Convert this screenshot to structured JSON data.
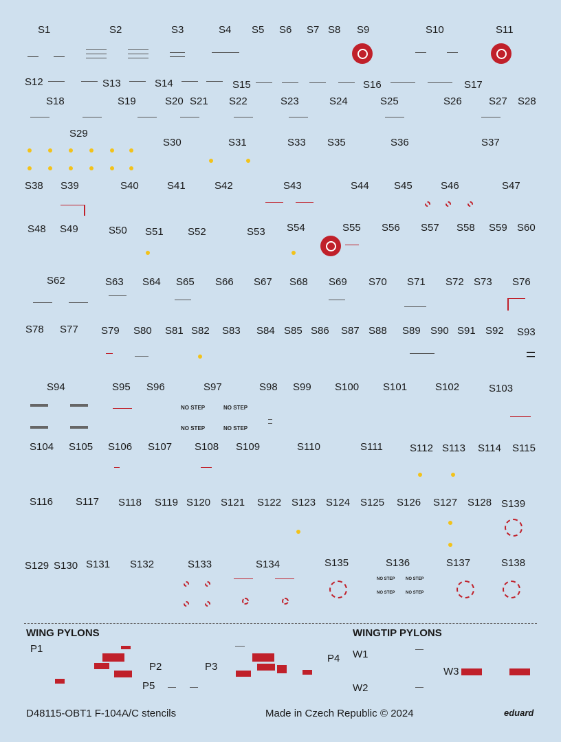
{
  "labels": [
    "S1",
    "S2",
    "S3",
    "S4",
    "S5",
    "S6",
    "S7",
    "S8",
    "S9",
    "S10",
    "S11",
    "S12",
    "S13",
    "S14",
    "S15",
    "S16",
    "S17",
    "S18",
    "S19",
    "S20",
    "S21",
    "S22",
    "S23",
    "S24",
    "S25",
    "S26",
    "S27",
    "S28",
    "S29",
    "S30",
    "S31",
    "S33",
    "S35",
    "S36",
    "S37",
    "S38",
    "S39",
    "S40",
    "S41",
    "S42",
    "S43",
    "S44",
    "S45",
    "S46",
    "S47",
    "S48",
    "S49",
    "S50",
    "S51",
    "S52",
    "S53",
    "S54",
    "S55",
    "S56",
    "S57",
    "S58",
    "S59",
    "S60",
    "S62",
    "S63",
    "S64",
    "S65",
    "S66",
    "S67",
    "S68",
    "S69",
    "S70",
    "S71",
    "S72",
    "S73",
    "S76",
    "S78",
    "S77",
    "S79",
    "S80",
    "S81",
    "S82",
    "S83",
    "S84",
    "S85",
    "S86",
    "S87",
    "S88",
    "S89",
    "S90",
    "S91",
    "S92",
    "S93",
    "S94",
    "S95",
    "S96",
    "S97",
    "S98",
    "S99",
    "S100",
    "S101",
    "S102",
    "S103",
    "S104",
    "S105",
    "S106",
    "S107",
    "S108",
    "S109",
    "S110",
    "S111",
    "S112",
    "S113",
    "S114",
    "S115",
    "S116",
    "S117",
    "S118",
    "S119",
    "S120",
    "S121",
    "S122",
    "S123",
    "S124",
    "S125",
    "S126",
    "S127",
    "S128",
    "S139",
    "S129",
    "S130",
    "S131",
    "S132",
    "S133",
    "S134",
    "S135",
    "S136",
    "S137",
    "S138"
  ],
  "no_step": "NO STEP",
  "sections": {
    "wing_pylons": "WING PYLONS",
    "wingtip_pylons": "WINGTIP PYLONS"
  },
  "pylon_labels": [
    "P1",
    "P2",
    "P3",
    "P4",
    "P5",
    "W1",
    "W2",
    "W3"
  ],
  "footer": {
    "code": "D48115-OBT1 F-104A/C stencils",
    "made_in": "Made in Czech Republic",
    "copyright": "©  2024",
    "brand": "eduard"
  },
  "colors": {
    "background": "#cfe0ee",
    "stencil_red": "#c0202a",
    "stencil_yellow": "#f2c21a",
    "label": "#1a1a1a"
  }
}
